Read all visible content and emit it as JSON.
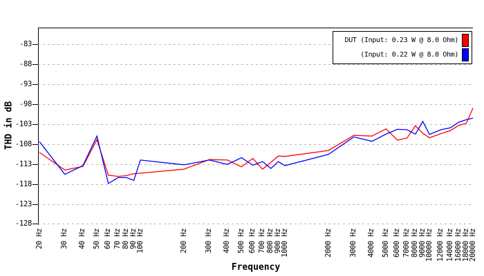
{
  "chart_data": {
    "type": "line",
    "title": "",
    "xlabel": "Frequency",
    "ylabel": "THD in dB",
    "x_scale": "log",
    "xlim": [
      20,
      20000
    ],
    "ylim": [
      -128.1,
      -78.8
    ],
    "grid": true,
    "legend_position": "top-right",
    "x": [
      20,
      30,
      40,
      50,
      60,
      70,
      80,
      90,
      100,
      200,
      300,
      400,
      500,
      600,
      700,
      800,
      900,
      1000,
      2000,
      3000,
      4000,
      5000,
      6000,
      7000,
      8000,
      9000,
      10000,
      12000,
      14000,
      16000,
      18000,
      20000
    ],
    "x_tick_labels": [
      "20 Hz",
      "30 Hz",
      "40 Hz",
      "50 Hz",
      "60 Hz",
      "70 Hz",
      "80 Hz",
      "90 Hz",
      "100 Hz",
      "200 Hz",
      "300 Hz",
      "400 Hz",
      "500 Hz",
      "600 Hz",
      "700 Hz",
      "800 Hz",
      "900 Hz",
      "1000 Hz",
      "2000 Hz",
      "3000 Hz",
      "4000 Hz",
      "5000 Hz",
      "6000 Hz",
      "7000 Hz",
      "8000 Hz",
      "9000 Hz",
      "10000 Hz",
      "12000 Hz",
      "14000 Hz",
      "16000 Hz",
      "18000 Hz",
      "20000 Hz"
    ],
    "y_ticks": [
      -83,
      -88,
      -93,
      -98,
      -103,
      -108,
      -113,
      -118,
      -123,
      -128
    ],
    "series": [
      {
        "name": "DUT (Input: 0.23 W @ 8.0 Ohm)",
        "color": "#ff0000",
        "values": [
          -110.1,
          -114.5,
          -113.6,
          -106.9,
          -115.8,
          -116.1,
          -115.9,
          -115.4,
          -115.3,
          -114.3,
          -111.9,
          -112.0,
          -113.7,
          -111.6,
          -114.3,
          -112.6,
          -111.0,
          -111.1,
          -109.6,
          -105.8,
          -106.0,
          -104.2,
          -107.0,
          -106.5,
          -103.4,
          -105.3,
          -106.4,
          -105.4,
          -104.6,
          -103.3,
          -102.8,
          -99.0
        ]
      },
      {
        "name": "(Input: 0.22 W @ 8.0 Ohm)",
        "color": "#0000ff",
        "values": [
          -107.4,
          -115.6,
          -113.4,
          -106.0,
          -117.9,
          -116.4,
          -116.4,
          -117.1,
          -112.0,
          -113.2,
          -112.0,
          -113.1,
          -111.4,
          -113.3,
          -112.4,
          -114.1,
          -112.4,
          -113.4,
          -110.6,
          -106.2,
          -107.3,
          -105.5,
          -104.3,
          -104.4,
          -105.5,
          -102.3,
          -105.6,
          -104.4,
          -103.9,
          -102.5,
          -101.9,
          -101.5
        ]
      }
    ]
  },
  "colors": {
    "axis": "#000000",
    "gridline": "#b4b4b4",
    "background": "#ffffff",
    "series_red": "#ff0000",
    "series_blue": "#0000ff"
  }
}
